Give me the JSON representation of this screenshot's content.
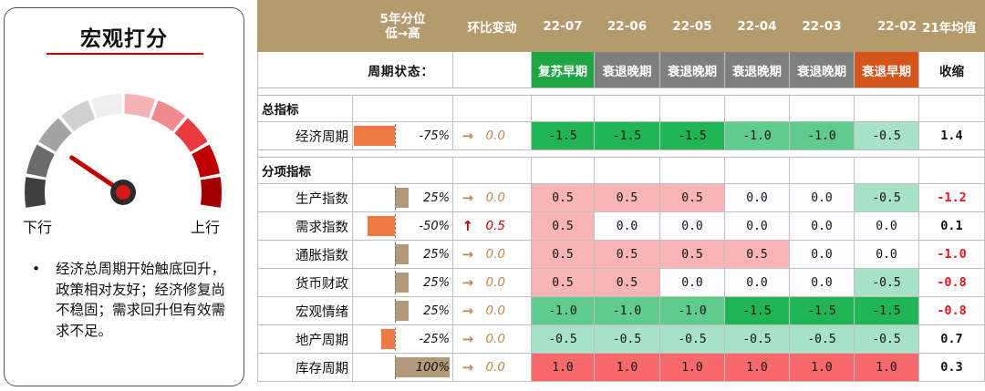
{
  "panel": {
    "title": "宏观打分",
    "gauge_left_label": "下行",
    "gauge_right_label": "上行",
    "gauge_level": 0.22,
    "notes": [
      "经济总周期开始触底回升，政策相对友好；经济修复尚不稳固；需求回升但有效需求不足。"
    ]
  },
  "table": {
    "header": {
      "percentile_line1": "5年分位",
      "percentile_line2": "低→高",
      "change": "环比变动",
      "months": [
        "22-07",
        "22-06",
        "22-05",
        "22-04",
        "22-03",
        "22-02"
      ],
      "avg": "21年均值"
    },
    "state_label": "周期状态：",
    "states": [
      "复苏早期",
      "衰退晚期",
      "衰退晚期",
      "衰退晚期",
      "衰退晚期",
      "衰退早期"
    ],
    "state_colors": [
      "#1ea544",
      "#7f7f7f",
      "#7f7f7f",
      "#7f7f7f",
      "#7f7f7f",
      "#d4541a"
    ],
    "avg_state": "收缩",
    "sections": [
      {
        "title": "总指标",
        "rows": [
          {
            "name": "经济周期",
            "pct": "-75%",
            "pct_value": -75,
            "arrow": "→",
            "arrow_color": "#c0894a",
            "change": "0.0",
            "values": [
              "-1.5",
              "-1.5",
              "-1.5",
              "-1.0",
              "-1.0",
              "-0.5"
            ],
            "avg": "1.4",
            "avg_color": "#111111"
          }
        ]
      },
      {
        "title": "分项指标",
        "rows": [
          {
            "name": "生产指数",
            "pct": "25%",
            "pct_value": 25,
            "arrow": "→",
            "arrow_color": "#c0894a",
            "change": "0.0",
            "values": [
              "0.5",
              "0.5",
              "0.5",
              "0.0",
              "0.0",
              "-0.5"
            ],
            "avg": "-1.2",
            "avg_color": "#e8131f"
          },
          {
            "name": "需求指数",
            "pct": "-50%",
            "pct_value": -50,
            "arrow": "↑",
            "arrow_color": "#c00000",
            "change": "0.5",
            "values": [
              "0.5",
              "0.0",
              "0.0",
              "0.0",
              "0.0",
              "0.0"
            ],
            "avg": "0.1",
            "avg_color": "#111111"
          },
          {
            "name": "通胀指数",
            "pct": "25%",
            "pct_value": 25,
            "arrow": "→",
            "arrow_color": "#c0894a",
            "change": "0.0",
            "values": [
              "0.5",
              "0.5",
              "0.5",
              "0.5",
              "0.0",
              "0.0"
            ],
            "avg": "-1.0",
            "avg_color": "#e8131f"
          },
          {
            "name": "货币财政",
            "pct": "25%",
            "pct_value": 25,
            "arrow": "→",
            "arrow_color": "#c0894a",
            "change": "0.0",
            "values": [
              "0.5",
              "0.5",
              "0.0",
              "0.0",
              "0.0",
              "-0.5"
            ],
            "avg": "-0.8",
            "avg_color": "#e8131f"
          },
          {
            "name": "宏观情绪",
            "pct": "25%",
            "pct_value": 25,
            "arrow": "→",
            "arrow_color": "#c0894a",
            "change": "0.0",
            "values": [
              "-1.0",
              "-1.0",
              "-1.0",
              "-1.5",
              "-1.5",
              "-1.5"
            ],
            "avg": "-0.8",
            "avg_color": "#e8131f"
          },
          {
            "name": "地产周期",
            "pct": "-25%",
            "pct_value": -25,
            "arrow": "→",
            "arrow_color": "#c0894a",
            "change": "0.0",
            "values": [
              "-0.5",
              "-0.5",
              "-0.5",
              "-0.5",
              "-0.5",
              "-0.5"
            ],
            "avg": "0.7",
            "avg_color": "#111111"
          },
          {
            "name": "库存周期",
            "pct": "100%",
            "pct_value": 100,
            "arrow": "→",
            "arrow_color": "#c0894a",
            "change": "0.0",
            "values": [
              "1.0",
              "1.0",
              "1.0",
              "1.0",
              "1.0",
              "1.0"
            ],
            "avg": "0.3",
            "avg_color": "#111111"
          }
        ]
      }
    ],
    "value_colors": {
      "1.0": "#f8696b",
      "0.5": "#f9b5b6",
      "0.0": "#fcfcff",
      "-0.5": "#a7e2c6",
      "-1.0": "#5fcc8e",
      "-1.5": "#20b454"
    },
    "pct_colors": {
      "negative": "#f07843",
      "positive": "#b09a7a"
    }
  }
}
